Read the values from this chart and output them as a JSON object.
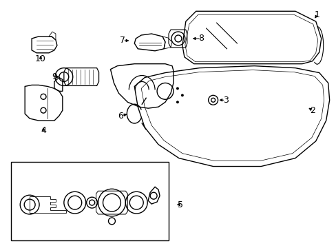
{
  "background_color": "#ffffff",
  "line_color": "#000000",
  "text_color": "#000000",
  "font_size_labels": 9,
  "lw": 1.0
}
